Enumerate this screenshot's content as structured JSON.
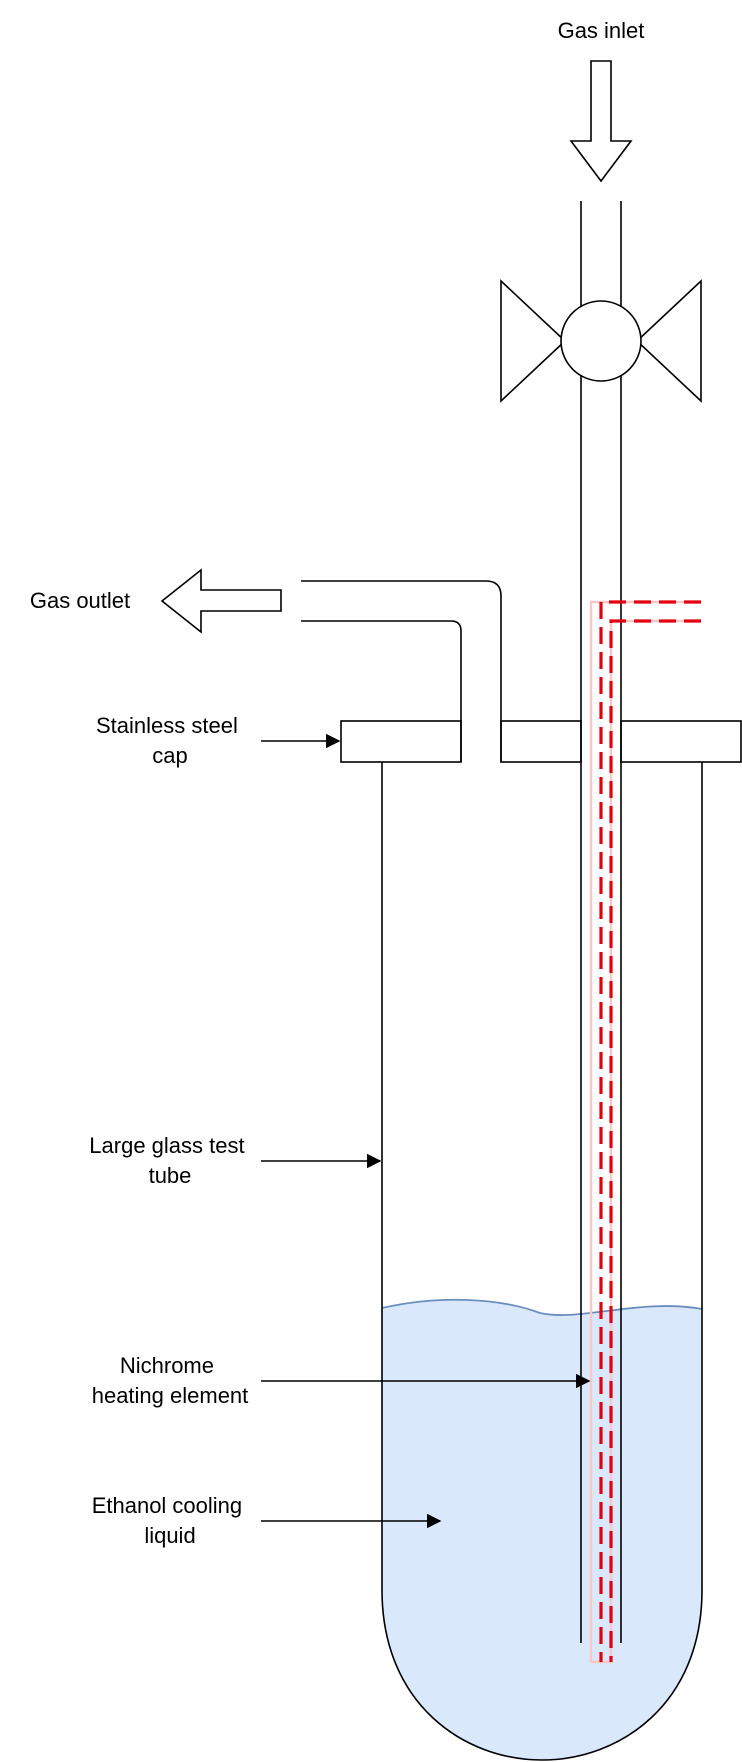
{
  "labels": {
    "gas_inlet": "Gas inlet",
    "gas_outlet": "Gas outlet",
    "stainless_steel_cap_line1": "Stainless steel",
    "stainless_steel_cap_line2": "cap",
    "large_glass_test_tube_line1": "Large glass test",
    "large_glass_test_tube_line2": "tube",
    "nichrome_heating_element_line1": "Nichrome",
    "nichrome_heating_element_line2": "heating element",
    "ethanol_cooling_liquid_line1": "Ethanol cooling",
    "ethanol_cooling_liquid_line2": "liquid"
  },
  "colors": {
    "liquid_fill": "#dae8fc",
    "liquid_surface": "#6c8ebf",
    "heating_element_dash": "#e3000f",
    "heating_element_sheath": "#f8c8c8",
    "outline": "#000000"
  },
  "icons": {
    "inlet_arrow": "arrow-down-icon",
    "outlet_arrow": "arrow-left-icon",
    "valve": "valve-icon"
  }
}
